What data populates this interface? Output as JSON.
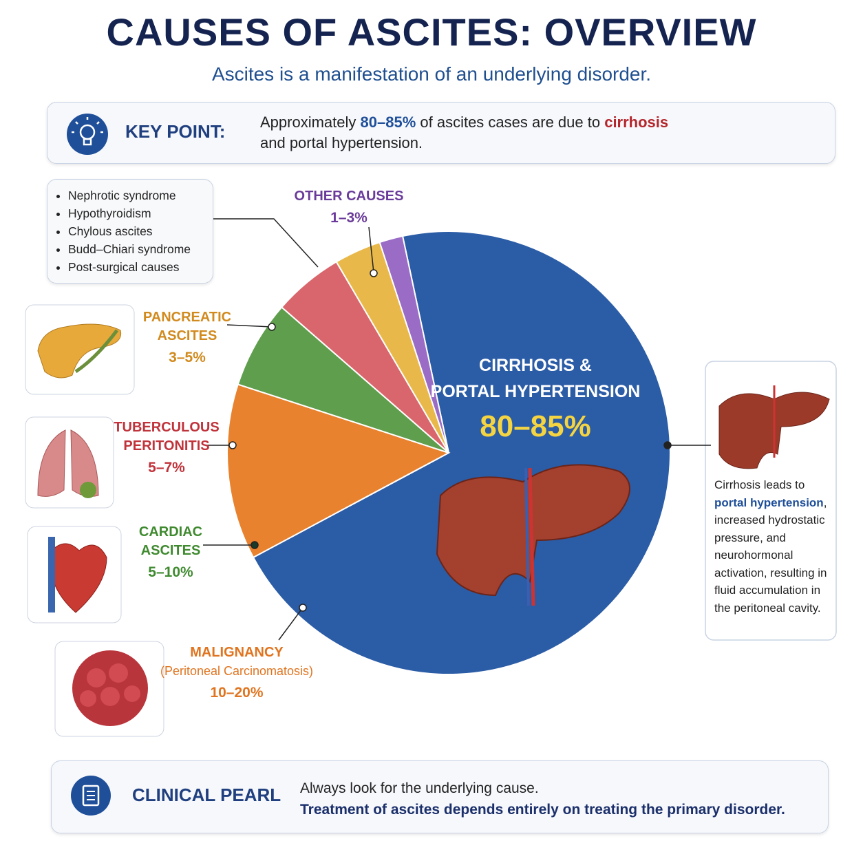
{
  "header": {
    "title": "CAUSES OF ASCITES: OVERVIEW",
    "subtitle": "Ascites is a manifestation of an underlying disorder."
  },
  "key_point": {
    "label": "KEY POINT:",
    "text": [
      "Approximately ",
      "80–85%",
      " of ascites cases are due to ",
      "cirrhosis",
      "and portal hypertension."
    ]
  },
  "chart_data": {
    "type": "pie",
    "categories": [
      "CIRRHOSIS &\nPORTAL HYPERTENSION",
      "MALIGNANCY",
      "CARDIAC\nASCITES",
      "TUBERCULOUS\nPERITONITIS",
      "PANCREATIC\nASCITES",
      "OTHER CAUSES"
    ],
    "details": [
      null,
      "(Peritoneal Carcinomatosis)",
      null,
      null,
      null,
      null
    ],
    "values": [
      [
        80,
        85
      ],
      [
        10,
        20
      ],
      [
        5,
        10
      ],
      [
        5,
        7
      ],
      [
        3,
        5
      ],
      [
        1,
        3
      ]
    ],
    "value_labels": [
      "80–85%",
      "10–20%",
      "5–10%",
      "5–7%",
      "3–5%",
      "1–3%"
    ],
    "colors": [
      "#2b5ca6",
      "#e8822e",
      "#5e9e4c",
      "#d9666c",
      "#e8b94a",
      "#9a6cc6"
    ]
  },
  "other_causes": [
    "Nephrotic syndrome",
    "Hypothyroidism",
    "Chylous ascites",
    "Budd–Chiari syndrome",
    "Post-surgical causes"
  ],
  "cirrhosis_note": [
    "Cirrhosis leads to ",
    "portal hypertension",
    ", increased hydrostatic pressure, and neurohormonal activation, resulting in fluid accumulation in the peritoneal cavity."
  ],
  "clinical_pearl": {
    "title": "CLINICAL PEARL",
    "lines": [
      "Always look for the underlying cause.",
      "Treatment of ascites depends entirely on treating the primary disorder."
    ]
  }
}
